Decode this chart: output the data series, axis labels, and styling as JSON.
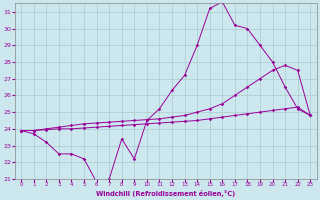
{
  "xlabel": "Windchill (Refroidissement éolien,°C)",
  "background_color": "#cce8ee",
  "grid_color": "#aacccc",
  "line_color": "#990099",
  "xlim": [
    -0.5,
    23.5
  ],
  "ylim": [
    21,
    31.5
  ],
  "yticks": [
    21,
    22,
    23,
    24,
    25,
    26,
    27,
    28,
    29,
    30,
    31
  ],
  "xticks": [
    0,
    1,
    2,
    3,
    4,
    5,
    6,
    7,
    8,
    9,
    10,
    11,
    12,
    13,
    14,
    15,
    16,
    17,
    18,
    19,
    20,
    21,
    22,
    23
  ],
  "curve1_x": [
    0,
    1,
    2,
    3,
    4,
    5,
    6,
    7,
    8,
    9,
    10,
    11,
    12,
    13,
    14,
    15,
    16,
    17,
    18,
    19,
    20,
    21,
    22,
    23
  ],
  "curve1_y": [
    23.9,
    23.7,
    23.2,
    22.5,
    22.5,
    22.2,
    20.8,
    21.0,
    23.4,
    22.2,
    24.5,
    25.2,
    26.3,
    27.2,
    29.0,
    31.2,
    31.6,
    30.2,
    30.0,
    29.0,
    28.0,
    26.5,
    25.2,
    24.8
  ],
  "curve2_x": [
    0,
    1,
    2,
    3,
    4,
    5,
    6,
    7,
    8,
    9,
    10,
    11,
    12,
    13,
    14,
    15,
    16,
    17,
    18,
    19,
    20,
    21,
    22,
    23
  ],
  "curve2_y": [
    23.9,
    23.9,
    24.0,
    24.1,
    24.2,
    24.3,
    24.35,
    24.4,
    24.45,
    24.5,
    24.55,
    24.6,
    24.7,
    24.8,
    25.0,
    25.2,
    25.5,
    26.0,
    26.5,
    27.0,
    27.5,
    27.8,
    27.5,
    24.8
  ],
  "curve3_x": [
    0,
    1,
    2,
    3,
    4,
    5,
    6,
    7,
    8,
    9,
    10,
    11,
    12,
    13,
    14,
    15,
    16,
    17,
    18,
    19,
    20,
    21,
    22,
    23
  ],
  "curve3_y": [
    23.9,
    23.9,
    23.95,
    24.0,
    24.0,
    24.05,
    24.1,
    24.15,
    24.2,
    24.25,
    24.3,
    24.35,
    24.4,
    24.45,
    24.5,
    24.6,
    24.7,
    24.8,
    24.9,
    25.0,
    25.1,
    25.2,
    25.3,
    24.8
  ]
}
